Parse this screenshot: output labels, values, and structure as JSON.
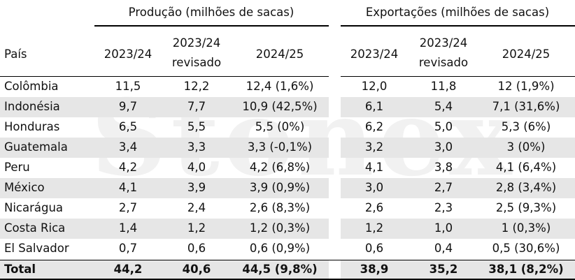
{
  "watermark": "Stonex",
  "groups": [
    "Produção (milhões de sacas)",
    "Exportações (milhões de sacas)"
  ],
  "columns": [
    "País",
    "2023/24",
    "2023/24 revisado",
    "2024/25",
    "2023/24",
    "2023/24 revisado",
    "2024/25"
  ],
  "rows": [
    [
      "Colômbia",
      "11,5",
      "12,2",
      "12,4 (1,6%)",
      "12,0",
      "11,8",
      "12 (1,9%)"
    ],
    [
      "Indonésia",
      "9,7",
      "7,7",
      "10,9 (42,5%)",
      "6,1",
      "5,4",
      "7,1 (31,6%)"
    ],
    [
      "Honduras",
      "6,5",
      "5,5",
      "5,5 (0%)",
      "6,2",
      "5,0",
      "5,3 (6%)"
    ],
    [
      "Guatemala",
      "3,4",
      "3,3",
      "3,3 (-0,1%)",
      "3,2",
      "3,0",
      "3 (0%)"
    ],
    [
      "Peru",
      "4,2",
      "4,0",
      "4,2 (6,8%)",
      "4,1",
      "3,8",
      "4,1 (6,4%)"
    ],
    [
      "México",
      "4,1",
      "3,9",
      "3,9 (0,9%)",
      "3,0",
      "2,7",
      "2,8 (3,4%)"
    ],
    [
      "Nicarágua",
      "2,7",
      "2,4",
      "2,6 (8,3%)",
      "2,6",
      "2,3",
      "2,5 (9,3%)"
    ],
    [
      "Costa Rica",
      "1,4",
      "1,2",
      "1,2 (0,3%)",
      "1,2",
      "1,0",
      "1 (0,3%)"
    ],
    [
      "El Salvador",
      "0,7",
      "0,6",
      "0,6 (0,9%)",
      "0,6",
      "0,4",
      "0,5 (30,6%)"
    ]
  ],
  "total": [
    "Total",
    "44,2",
    "40,6",
    "44,5 (9,8%)",
    "38,9",
    "35,2",
    "38,1 (8,2%)"
  ]
}
